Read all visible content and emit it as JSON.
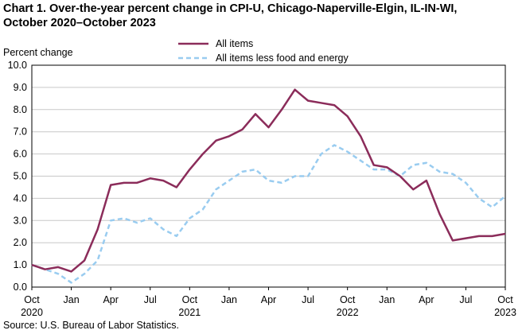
{
  "title_line1": "Chart 1. Over-the-year percent change in CPI-U, Chicago-Naperville-Elgin,  IL-IN-WI,",
  "title_line2": "October 2020–October 2023",
  "source": "Source: U.S. Bureau  of Labor Statistics.",
  "chart_data": {
    "type": "line",
    "ylabel": "Percent change",
    "ylim": [
      0,
      10
    ],
    "yticks": [
      "0.0",
      "1.0",
      "2.0",
      "3.0",
      "4.0",
      "5.0",
      "6.0",
      "7.0",
      "8.0",
      "9.0",
      "10.0"
    ],
    "x": [
      "Oct 2020",
      "Nov 2020",
      "Dec 2020",
      "Jan 2021",
      "Feb 2021",
      "Mar 2021",
      "Apr 2021",
      "May 2021",
      "Jun 2021",
      "Jul 2021",
      "Aug 2021",
      "Sep 2021",
      "Oct 2021",
      "Nov 2021",
      "Dec 2021",
      "Jan 2022",
      "Feb 2022",
      "Mar 2022",
      "Apr 2022",
      "May 2022",
      "Jun 2022",
      "Jul 2022",
      "Aug 2022",
      "Sep 2022",
      "Oct 2022",
      "Nov 2022",
      "Dec 2022",
      "Jan 2023",
      "Feb 2023",
      "Mar 2023",
      "Apr 2023",
      "May 2023",
      "Jun 2023",
      "Jul 2023",
      "Aug 2023",
      "Sep 2023",
      "Oct 2023"
    ],
    "xtick_labels": [
      {
        "month": "Oct",
        "year": "2020"
      },
      {
        "month": "Jan",
        "year": ""
      },
      {
        "month": "Apr",
        "year": ""
      },
      {
        "month": "Jul",
        "year": ""
      },
      {
        "month": "Oct",
        "year": "2021"
      },
      {
        "month": "Jan",
        "year": ""
      },
      {
        "month": "Apr",
        "year": ""
      },
      {
        "month": "Jul",
        "year": ""
      },
      {
        "month": "Oct",
        "year": "2022"
      },
      {
        "month": "Jan",
        "year": ""
      },
      {
        "month": "Apr",
        "year": ""
      },
      {
        "month": "Jul",
        "year": ""
      },
      {
        "month": "Oct",
        "year": "2023"
      }
    ],
    "grid": true,
    "legend_position": "top",
    "series": [
      {
        "name": "All items",
        "color": "#8b2c5a",
        "style": "solid",
        "values": [
          1.0,
          0.8,
          0.9,
          0.7,
          1.2,
          2.6,
          4.6,
          4.7,
          4.7,
          4.9,
          4.8,
          4.5,
          5.3,
          6.0,
          6.6,
          6.8,
          7.1,
          7.8,
          7.2,
          8.0,
          8.9,
          8.4,
          8.3,
          8.2,
          7.7,
          6.8,
          5.5,
          5.4,
          5.0,
          4.4,
          4.8,
          3.3,
          2.1,
          2.2,
          2.3,
          2.3,
          2.4
        ]
      },
      {
        "name": "All items less food and energy",
        "color": "#99ccf0",
        "style": "dashed",
        "values": [
          1.0,
          0.8,
          0.6,
          0.2,
          0.6,
          1.2,
          3.0,
          3.1,
          2.9,
          3.1,
          2.6,
          2.3,
          3.1,
          3.5,
          4.4,
          4.8,
          5.2,
          5.3,
          4.8,
          4.7,
          5.0,
          5.0,
          6.0,
          6.4,
          6.1,
          5.7,
          5.3,
          5.3,
          5.0,
          5.5,
          5.6,
          5.2,
          5.1,
          4.7,
          4.0,
          3.6,
          4.1
        ]
      }
    ]
  }
}
